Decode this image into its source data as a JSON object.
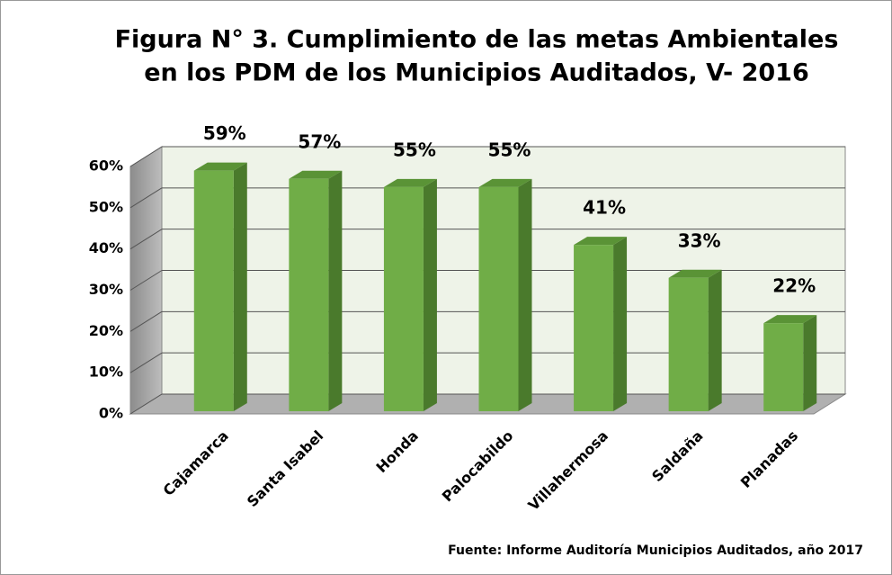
{
  "chart_data": {
    "type": "bar",
    "title_lines": [
      "Figura N° 3. Cumplimiento de las metas Ambientales",
      "en los PDM de los Municipios Auditados, V- 2016"
    ],
    "categories": [
      "Cajamarca",
      "Santa Isabel",
      "Honda",
      "Palocabildo",
      "Villahermosa",
      "Saldaña",
      "Planadas"
    ],
    "values": [
      59,
      57,
      55,
      55,
      41,
      33,
      22
    ],
    "value_labels": [
      "59%",
      "57%",
      "55%",
      "55%",
      "41%",
      "33%",
      "22%"
    ],
    "color": "#70ad47",
    "ylim": [
      0,
      60
    ],
    "yticks": [
      {
        "value": 0,
        "label": "0%"
      },
      {
        "value": 10,
        "label": "10%"
      },
      {
        "value": 20,
        "label": "20%"
      },
      {
        "value": 30,
        "label": "30%"
      },
      {
        "value": 40,
        "label": "40%"
      },
      {
        "value": 50,
        "label": "50%"
      },
      {
        "value": 60,
        "label": "60%"
      }
    ],
    "grid": true,
    "source": "Fuente: Informe Auditoría Municipios Auditados, año 2017"
  }
}
